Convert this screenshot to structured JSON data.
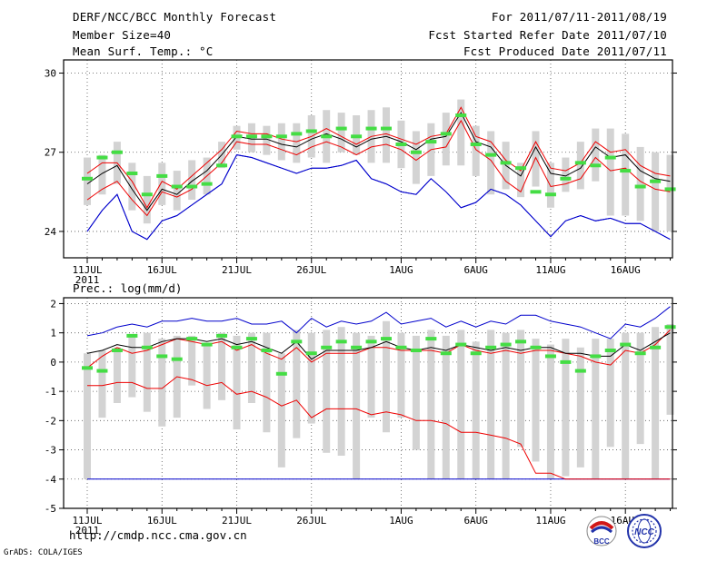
{
  "header": {
    "left_line1": "DERF/NCC/BCC Monthly Forecast",
    "left_line2": "Member Size=40",
    "left_line3": "Mean Surf. Temp.: °C",
    "right_line1": "For 2011/07/11-2011/08/19",
    "right_line2": "Fcst Started Refer Date 2011/07/10",
    "right_line3": "Fcst Produced Date 2011/07/11"
  },
  "footer": {
    "url": "http://cmdp.ncc.cma.gov.cn",
    "credit": "GrADS: COLA/IGES",
    "logo1_text": "BCC",
    "logo2_text": "NCC"
  },
  "colors": {
    "envelope": "#0000cc",
    "inner": "#ee0000",
    "mean": "#000000",
    "observed": "#44dd44",
    "bars": "#d3d3d3"
  },
  "chart_data": [
    {
      "id": "temp",
      "type": "line",
      "title": "Mean Surf. Temp.: °C",
      "ylim": [
        23,
        30.5
      ],
      "yticks": [
        24,
        27,
        30
      ],
      "ytick_labels": [
        "24",
        "27",
        "30"
      ],
      "grid": true,
      "xtick_days": [
        0,
        5,
        10,
        15,
        21,
        26,
        31,
        36
      ],
      "xtick_labels": [
        "11JUL",
        "16JUL",
        "21JUL",
        "26JUL",
        "1AUG",
        "6AUG",
        "11AUG",
        "16AUG"
      ],
      "year_label": "2011",
      "days": 40,
      "series": [
        {
          "name": "max",
          "values": [
            24.0,
            24.8,
            25.4,
            24.0,
            23.7,
            24.4,
            24.6,
            25.0,
            25.4,
            25.8,
            26.9,
            26.8,
            26.6,
            26.4,
            26.2,
            26.4,
            26.4,
            26.5,
            26.7,
            26.0,
            25.8,
            25.5,
            25.4,
            26.0,
            25.5,
            24.9,
            25.1,
            25.6,
            25.4,
            25.0,
            24.4,
            23.8,
            24.4,
            24.6,
            24.4,
            24.5,
            24.3,
            24.3,
            24.0,
            23.7
          ]
        },
        {
          "name": "upper",
          "values": [
            26.2,
            26.6,
            26.6,
            25.9,
            24.9,
            25.9,
            25.6,
            26.1,
            26.6,
            27.1,
            27.8,
            27.7,
            27.7,
            27.5,
            27.4,
            27.6,
            27.9,
            27.6,
            27.3,
            27.6,
            27.7,
            27.5,
            27.3,
            27.6,
            27.7,
            28.7,
            27.6,
            27.4,
            26.7,
            26.3,
            27.4,
            26.4,
            26.3,
            26.6,
            27.4,
            27.0,
            27.1,
            26.5,
            26.2,
            26.1
          ]
        },
        {
          "name": "mean",
          "values": [
            25.8,
            26.2,
            26.5,
            25.6,
            24.8,
            25.6,
            25.4,
            25.9,
            26.3,
            26.9,
            27.6,
            27.5,
            27.5,
            27.3,
            27.2,
            27.5,
            27.7,
            27.5,
            27.2,
            27.5,
            27.6,
            27.4,
            27.1,
            27.5,
            27.6,
            28.5,
            27.4,
            27.2,
            26.5,
            26.1,
            27.2,
            26.2,
            26.1,
            26.4,
            27.2,
            26.8,
            26.9,
            26.3,
            26.0,
            25.9
          ]
        },
        {
          "name": "lower",
          "values": [
            25.2,
            25.6,
            25.9,
            25.2,
            24.6,
            25.5,
            25.3,
            25.6,
            26.1,
            26.6,
            27.4,
            27.3,
            27.3,
            27.1,
            26.9,
            27.2,
            27.4,
            27.2,
            26.9,
            27.2,
            27.3,
            27.1,
            26.7,
            27.1,
            27.2,
            28.2,
            27.1,
            26.7,
            25.9,
            25.5,
            26.8,
            25.7,
            25.8,
            26.0,
            26.8,
            26.3,
            26.4,
            25.9,
            25.6,
            25.5
          ]
        },
        {
          "name": "min",
          "values": [
            24.0,
            24.8,
            25.4,
            24.0,
            23.7,
            24.4,
            24.6,
            25.0,
            25.4,
            25.8,
            26.9,
            26.8,
            26.6,
            26.4,
            26.2,
            26.4,
            26.4,
            26.5,
            26.7,
            26.0,
            25.8,
            25.5,
            25.4,
            26.0,
            25.5,
            24.9,
            25.1,
            25.6,
            25.4,
            25.0,
            24.4,
            23.8,
            24.4,
            24.6,
            24.4,
            24.5,
            24.3,
            24.3,
            24.0,
            23.7
          ]
        },
        {
          "name": "observed",
          "values": [
            26.0,
            26.8,
            27.0,
            26.2,
            25.4,
            26.1,
            25.7,
            25.7,
            25.8,
            26.5,
            27.6,
            27.6,
            27.6,
            27.6,
            27.7,
            27.8,
            27.6,
            27.9,
            27.6,
            27.9,
            27.9,
            27.3,
            27.0,
            27.4,
            27.7,
            28.4,
            27.3,
            26.9,
            26.6,
            26.4,
            25.5,
            25.4,
            26.0,
            26.6,
            26.5,
            26.8,
            26.3,
            25.7,
            25.9,
            25.6
          ]
        },
        {
          "name": "bar_top",
          "values": [
            26.8,
            26.9,
            27.4,
            26.6,
            26.1,
            26.6,
            26.3,
            26.7,
            26.8,
            27.4,
            28.0,
            28.1,
            28.0,
            28.1,
            28.1,
            28.4,
            28.6,
            28.5,
            28.4,
            28.6,
            28.7,
            28.2,
            27.8,
            28.1,
            28.5,
            29.0,
            28.0,
            27.8,
            27.4,
            26.6,
            27.8,
            26.6,
            26.8,
            27.4,
            27.9,
            27.9,
            27.7,
            27.2,
            27.0,
            26.9
          ]
        },
        {
          "name": "bar_bottom",
          "values": [
            25.0,
            25.4,
            25.8,
            24.8,
            24.3,
            25.0,
            24.8,
            25.2,
            25.4,
            26.4,
            27.1,
            27.0,
            26.9,
            26.7,
            26.6,
            26.8,
            26.6,
            27.0,
            26.9,
            26.6,
            26.6,
            26.4,
            25.8,
            26.1,
            26.5,
            26.5,
            26.1,
            25.4,
            25.6,
            25.3,
            25.7,
            24.9,
            25.5,
            25.6,
            25.9,
            24.6,
            24.6,
            24.4,
            24.0,
            24.0
          ]
        }
      ]
    },
    {
      "id": "prec",
      "type": "line",
      "title": "Prec.: log(mm/d)",
      "ylim": [
        -5,
        2.2
      ],
      "yticks": [
        -5,
        -4,
        -3,
        -2,
        -1,
        0,
        1,
        2
      ],
      "ytick_labels": [
        "-5",
        "-4",
        "-3",
        "-2",
        "-1",
        "0",
        "1",
        "2"
      ],
      "grid": true,
      "xtick_days": [
        0,
        5,
        10,
        15,
        21,
        26,
        31,
        36
      ],
      "xtick_labels": [
        "11JUL",
        "16JUL",
        "21JUL",
        "26JUL",
        "1AUG",
        "6AUG",
        "11AUG",
        "16AUG"
      ],
      "year_label": "2011",
      "days": 40,
      "series": [
        {
          "name": "max",
          "values": [
            0.9,
            1.0,
            1.2,
            1.3,
            1.2,
            1.4,
            1.4,
            1.5,
            1.4,
            1.4,
            1.5,
            1.3,
            1.3,
            1.4,
            1.0,
            1.5,
            1.2,
            1.4,
            1.3,
            1.4,
            1.7,
            1.3,
            1.4,
            1.5,
            1.2,
            1.4,
            1.2,
            1.4,
            1.3,
            1.6,
            1.6,
            1.4,
            1.3,
            1.2,
            1.0,
            0.8,
            1.3,
            1.2,
            1.5,
            1.9
          ]
        },
        {
          "name": "upper",
          "values": [
            -0.2,
            0.2,
            0.5,
            0.3,
            0.4,
            0.6,
            0.8,
            0.7,
            0.6,
            0.7,
            0.4,
            0.6,
            0.3,
            0.1,
            0.5,
            0.0,
            0.3,
            0.3,
            0.3,
            0.5,
            0.5,
            0.4,
            0.4,
            0.4,
            0.3,
            0.6,
            0.4,
            0.3,
            0.4,
            0.3,
            0.4,
            0.4,
            0.3,
            0.2,
            0.0,
            -0.1,
            0.4,
            0.3,
            0.6,
            1.1
          ]
        },
        {
          "name": "mean",
          "values": [
            0.3,
            0.4,
            0.6,
            0.5,
            0.5,
            0.7,
            0.8,
            0.8,
            0.7,
            0.8,
            0.6,
            0.7,
            0.5,
            0.3,
            0.7,
            0.1,
            0.4,
            0.4,
            0.4,
            0.5,
            0.7,
            0.5,
            0.4,
            0.5,
            0.4,
            0.6,
            0.5,
            0.4,
            0.5,
            0.4,
            0.5,
            0.5,
            0.3,
            0.3,
            0.2,
            0.2,
            0.6,
            0.4,
            0.7,
            1.0
          ]
        },
        {
          "name": "lower",
          "values": [
            -0.8,
            -0.8,
            -0.7,
            -0.7,
            -0.9,
            -0.9,
            -0.5,
            -0.6,
            -0.8,
            -0.7,
            -1.1,
            -1.0,
            -1.2,
            -1.5,
            -1.3,
            -1.9,
            -1.6,
            -1.6,
            -1.6,
            -1.8,
            -1.7,
            -1.8,
            -2.0,
            -2.0,
            -2.1,
            -2.4,
            -2.4,
            -2.5,
            -2.6,
            -2.8,
            -3.8,
            -3.8,
            -4.0,
            -4.0,
            -4.0,
            -4.0,
            -4.0,
            -4.0,
            -4.0,
            -4.0
          ]
        },
        {
          "name": "min",
          "values": [
            -4.0,
            -4.0,
            -4.0,
            -4.0,
            -4.0,
            -4.0,
            -4.0,
            -4.0,
            -4.0,
            -4.0,
            -4.0,
            -4.0,
            -4.0,
            -4.0,
            -4.0,
            -4.0,
            -4.0,
            -4.0,
            -4.0,
            -4.0,
            -4.0,
            -4.0,
            -4.0,
            -4.0,
            -4.0,
            -4.0,
            -4.0,
            -4.0,
            -4.0,
            -4.0,
            -4.0,
            -4.0,
            -4.0,
            -4.0,
            -4.0,
            -4.0,
            -4.0,
            -4.0,
            -4.0,
            -4.0
          ]
        },
        {
          "name": "observed",
          "values": [
            -0.2,
            -0.3,
            0.4,
            0.9,
            0.5,
            0.2,
            0.1,
            0.8,
            0.6,
            0.9,
            0.5,
            0.8,
            0.4,
            -0.4,
            0.7,
            0.3,
            0.5,
            0.7,
            0.5,
            0.7,
            0.8,
            0.5,
            0.4,
            0.8,
            0.3,
            0.6,
            0.3,
            0.5,
            0.6,
            0.7,
            0.5,
            0.2,
            0.0,
            -0.3,
            0.2,
            0.4,
            0.6,
            0.3,
            0.5,
            1.2
          ]
        },
        {
          "name": "bar_top",
          "values": [
            0.3,
            0.4,
            0.5,
            0.9,
            1.0,
            0.8,
            0.9,
            0.9,
            0.6,
            1.0,
            0.9,
            1.0,
            1.0,
            0.3,
            1.1,
            1.0,
            1.1,
            1.2,
            1.0,
            0.9,
            1.4,
            1.0,
            0.9,
            1.1,
            0.9,
            1.1,
            0.7,
            1.1,
            1.0,
            1.1,
            0.8,
            0.6,
            0.8,
            0.5,
            0.8,
            0.8,
            1.0,
            1.0,
            1.2,
            1.3
          ]
        },
        {
          "name": "bar_bottom",
          "values": [
            -4.0,
            -1.9,
            -1.4,
            -1.2,
            -1.7,
            -2.2,
            -1.9,
            -0.8,
            -1.6,
            -1.3,
            -2.3,
            -1.4,
            -2.4,
            -3.6,
            -2.6,
            -2.1,
            -3.1,
            -3.2,
            -4.0,
            -1.9,
            -2.4,
            -1.9,
            -3.0,
            -4.0,
            -4.0,
            -4.0,
            -4.0,
            -4.0,
            -4.0,
            -2.9,
            -3.4,
            -4.0,
            -3.9,
            -3.6,
            -4.0,
            -2.9,
            -4.0,
            -2.8,
            -4.0,
            -1.8
          ]
        }
      ]
    }
  ]
}
